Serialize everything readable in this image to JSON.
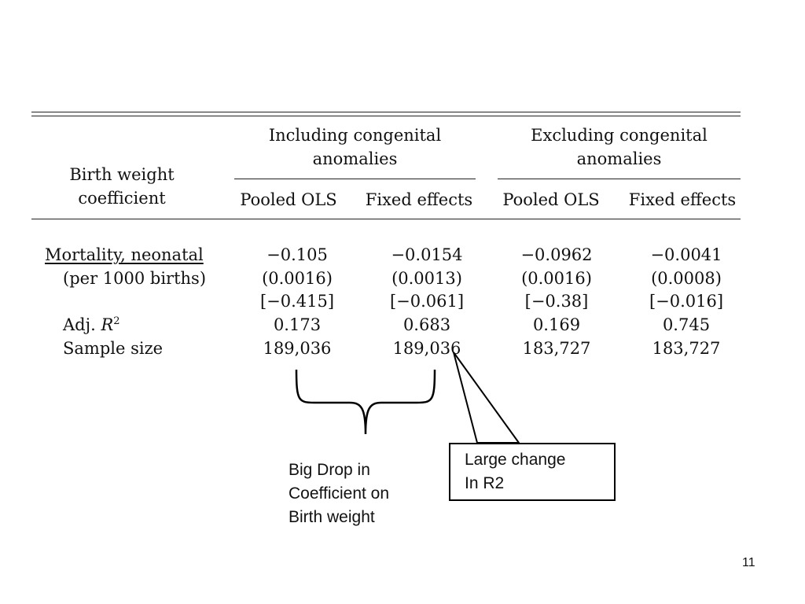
{
  "table": {
    "stub_header_line1": "Birth weight",
    "stub_header_line2": "coefficient",
    "groups": [
      {
        "line1": "Including congenital",
        "line2": "anomalies"
      },
      {
        "line1": "Excluding congenital",
        "line2": "anomalies"
      }
    ],
    "columns": [
      "Pooled OLS",
      "Fixed effects",
      "Pooled OLS",
      "Fixed effects"
    ],
    "row_label_main": "Mortality, neonatal",
    "row_label_sub": "(per 1000 births)",
    "adj_r2_label": "Adj. ",
    "adj_r2_symbol": "R",
    "adj_r2_exp": "2",
    "sample_size_label": "Sample size",
    "coefficients": [
      "−0.105",
      "−0.0154",
      "−0.0962",
      "−0.0041"
    ],
    "std_errors": [
      "(0.0016)",
      "(0.0013)",
      "(0.0016)",
      "(0.0008)"
    ],
    "brackets": [
      "[−0.415]",
      "[−0.061]",
      "[−0.38]",
      "[−0.016]"
    ],
    "adj_r2": [
      "0.173",
      "0.683",
      "0.169",
      "0.745"
    ],
    "sample_size": [
      "189,036",
      "189,036",
      "183,727",
      "183,727"
    ]
  },
  "annotation_left": {
    "line1": "Big Drop in",
    "line2": "Coefficient on",
    "line3": "Birth weight"
  },
  "annotation_right": {
    "line1": "Large change",
    "line2": "In R2"
  },
  "page_number": "11"
}
